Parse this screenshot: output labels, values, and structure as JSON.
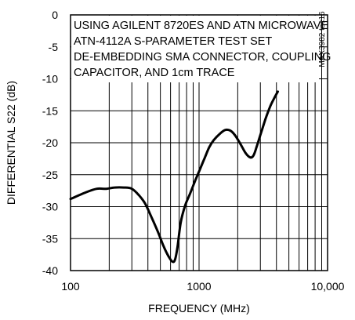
{
  "chart_data": {
    "type": "line",
    "title": "",
    "xlabel": "FREQUENCY (MHz)",
    "ylabel": "DIFFERENTIAL S22 (dB)",
    "xscale": "log",
    "xlim": [
      100,
      10000
    ],
    "ylim": [
      -40,
      0
    ],
    "x_tick_labels": [
      "100",
      "1000",
      "10,000"
    ],
    "y_tick_labels": [
      "0",
      "-5",
      "-10",
      "-15",
      "-20",
      "-25",
      "-30",
      "-35",
      "-40"
    ],
    "annotation_lines": [
      "USING AGILENT 8720ES AND ATN MICROWAVE",
      "ATN-4112A S-PARAMETER TEST SET",
      "DE-EMBEDDING SMA CONNECTOR, COUPLING",
      "CAPACITOR, AND 1cm TRACE"
    ],
    "figure_id": "MAX3982 toc16",
    "grid": true,
    "legend": "none",
    "line_color": "#000000",
    "series": [
      {
        "x": [
          100,
          130,
          160,
          190,
          220,
          260,
          300,
          340,
          380,
          430,
          480,
          530,
          580,
          620,
          650,
          680,
          720,
          780,
          850,
          930,
          1000,
          1100,
          1200,
          1300,
          1450,
          1600,
          1750,
          1900,
          2100,
          2300,
          2500,
          2650,
          2800,
          3000,
          3300,
          3600,
          3900,
          4100
        ],
        "y": [
          -28.8,
          -27.8,
          -27.2,
          -27.2,
          -27.0,
          -27.0,
          -27.2,
          -28.2,
          -29.5,
          -31.8,
          -34.0,
          -36.2,
          -37.8,
          -38.6,
          -38.3,
          -36.3,
          -32.5,
          -29.8,
          -28.0,
          -26.0,
          -24.5,
          -22.5,
          -20.7,
          -19.6,
          -18.6,
          -18.0,
          -18.1,
          -18.8,
          -20.2,
          -21.6,
          -22.3,
          -22.0,
          -20.7,
          -18.8,
          -16.2,
          -14.2,
          -12.8,
          -12.0
        ]
      }
    ]
  }
}
